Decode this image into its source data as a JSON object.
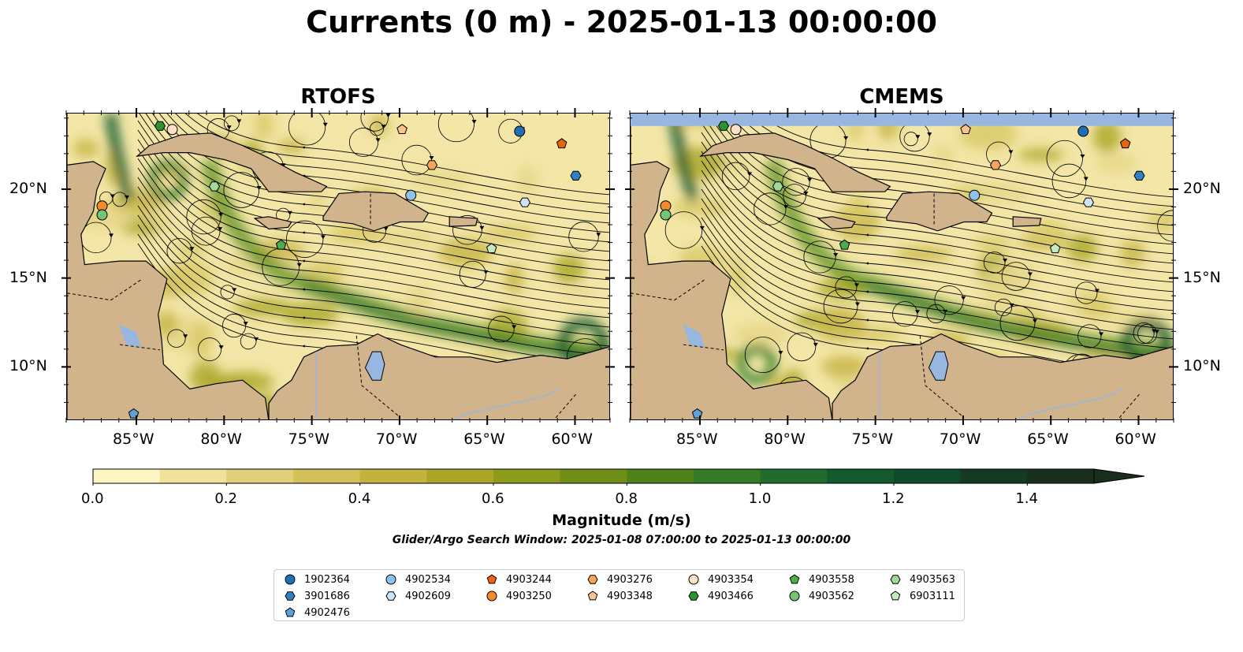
{
  "figure": {
    "title": "Currents (0 m) - 2025-01-13 00:00:00",
    "note": "Glider/Argo Search Window: 2025-01-08 07:00:00 to 2025-01-13 00:00:00"
  },
  "panels": [
    {
      "title": "RTOFS"
    },
    {
      "title": "CMEMS"
    }
  ],
  "axes": {
    "x_ticks": [
      "85°W",
      "80°W",
      "75°W",
      "70°W",
      "65°W",
      "60°W"
    ],
    "y_ticks": [
      "20°N",
      "15°N",
      "10°N"
    ],
    "lon_range": [
      -89,
      -58
    ],
    "lat_range": [
      7,
      24.3
    ]
  },
  "colorbar": {
    "label": "Magnitude (m/s)",
    "ticks": [
      "0.0",
      "0.2",
      "0.4",
      "0.6",
      "0.8",
      "1.0",
      "1.2",
      "1.4"
    ],
    "range": [
      0,
      1.5
    ],
    "extend": "max",
    "colors": [
      "#fdf6c3",
      "#f1e29a",
      "#e2cf79",
      "#d4c15a",
      "#c3b23e",
      "#a9a628",
      "#8c9b1a",
      "#6e8e18",
      "#4f811a",
      "#357a24",
      "#1f6c2c",
      "#135a2e",
      "#0f4a2a",
      "#153a24",
      "#1a2e1d"
    ]
  },
  "legend": {
    "items": [
      {
        "id": "1902364",
        "marker": "circle",
        "color": "#1f6fb5"
      },
      {
        "id": "3901686",
        "marker": "hexagon",
        "color": "#2f80c4"
      },
      {
        "id": "4902476",
        "marker": "pentagon",
        "color": "#5ea1d8"
      },
      {
        "id": "4902534",
        "marker": "circle",
        "color": "#8fc2e8"
      },
      {
        "id": "4902609",
        "marker": "hexagon",
        "color": "#cde4f6"
      },
      {
        "id": "4903244",
        "marker": "pentagon",
        "color": "#e8650e"
      },
      {
        "id": "4903250",
        "marker": "circle",
        "color": "#f58a2a"
      },
      {
        "id": "4903276",
        "marker": "hexagon",
        "color": "#f8a55c"
      },
      {
        "id": "4903348",
        "marker": "pentagon",
        "color": "#fbc48e"
      },
      {
        "id": "4903354",
        "marker": "circle",
        "color": "#fde0c6"
      },
      {
        "id": "4903466",
        "marker": "hexagon",
        "color": "#2b9330"
      },
      {
        "id": "4903558",
        "marker": "pentagon",
        "color": "#4cae4c"
      },
      {
        "id": "4903562",
        "marker": "circle",
        "color": "#74c476"
      },
      {
        "id": "4903563",
        "marker": "hexagon",
        "color": "#a1d99b"
      },
      {
        "id": "6903111",
        "marker": "pentagon",
        "color": "#c7e9c0"
      }
    ]
  },
  "floats": {
    "rtofs": [
      {
        "id": "1902364",
        "lon": -63.2,
        "lat": 23.3
      },
      {
        "id": "3901686",
        "lon": -60.0,
        "lat": 20.8
      },
      {
        "id": "4902476",
        "lon": -85.2,
        "lat": 7.4
      },
      {
        "id": "4902534",
        "lon": -69.4,
        "lat": 19.7
      },
      {
        "id": "4902609",
        "lon": -62.9,
        "lat": 19.3
      },
      {
        "id": "4903244",
        "lon": -60.8,
        "lat": 22.6
      },
      {
        "id": "4903250",
        "lon": -87.0,
        "lat": 19.1
      },
      {
        "id": "4903276",
        "lon": -68.2,
        "lat": 21.4
      },
      {
        "id": "4903348",
        "lon": -69.9,
        "lat": 23.4
      },
      {
        "id": "4903354",
        "lon": -83.0,
        "lat": 23.4
      },
      {
        "id": "4903466",
        "lon": -83.7,
        "lat": 23.6
      },
      {
        "id": "4903558",
        "lon": -76.8,
        "lat": 16.9
      },
      {
        "id": "4903562",
        "lon": -87.0,
        "lat": 18.6
      },
      {
        "id": "4903563",
        "lon": -80.6,
        "lat": 20.2
      },
      {
        "id": "6903111",
        "lon": -64.8,
        "lat": 16.7
      }
    ],
    "cmems": [
      {
        "id": "1902364",
        "lon": -63.2,
        "lat": 23.3
      },
      {
        "id": "3901686",
        "lon": -60.0,
        "lat": 20.8
      },
      {
        "id": "4902476",
        "lon": -85.2,
        "lat": 7.4
      },
      {
        "id": "4902534",
        "lon": -69.4,
        "lat": 19.7
      },
      {
        "id": "4902609",
        "lon": -62.9,
        "lat": 19.3
      },
      {
        "id": "4903244",
        "lon": -60.8,
        "lat": 22.6
      },
      {
        "id": "4903250",
        "lon": -87.0,
        "lat": 19.1
      },
      {
        "id": "4903276",
        "lon": -68.2,
        "lat": 21.4
      },
      {
        "id": "4903348",
        "lon": -69.9,
        "lat": 23.4
      },
      {
        "id": "4903354",
        "lon": -83.0,
        "lat": 23.4
      },
      {
        "id": "4903466",
        "lon": -83.7,
        "lat": 23.6
      },
      {
        "id": "4903558",
        "lon": -76.8,
        "lat": 16.9
      },
      {
        "id": "4903562",
        "lon": -87.0,
        "lat": 18.6
      },
      {
        "id": "4903563",
        "lon": -80.6,
        "lat": 20.2
      },
      {
        "id": "6903111",
        "lon": -64.8,
        "lat": 16.7
      }
    ]
  }
}
